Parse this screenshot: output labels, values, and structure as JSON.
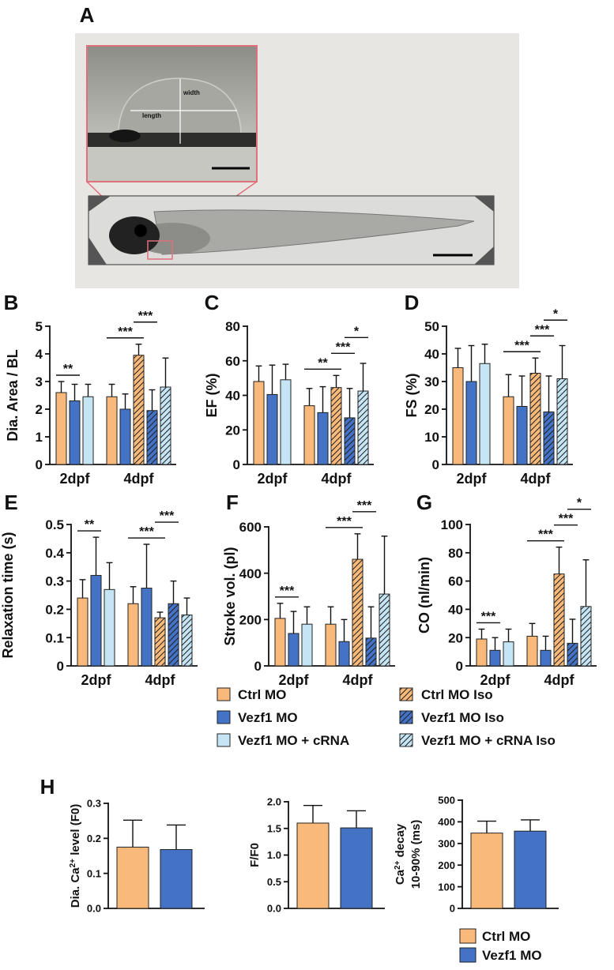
{
  "figure": {
    "panel_a": {
      "label": "A",
      "inset_labels": [
        "width",
        "length"
      ]
    }
  },
  "chart_data": [
    {
      "type": "bar",
      "panel": "B",
      "y_label": "Dia. Area / BL",
      "categories": [
        "2dpf",
        "4dpf"
      ],
      "ylim": [
        0,
        5
      ],
      "yticks": [
        0,
        1,
        2,
        3,
        4,
        5
      ],
      "series": [
        {
          "name": "Ctrl MO",
          "color": "#f9b97a",
          "hatch": false,
          "values": [
            2.6,
            2.45
          ],
          "errors": [
            0.4,
            0.45
          ]
        },
        {
          "name": "Vezf1 MO",
          "color": "#4472c4",
          "hatch": false,
          "values": [
            2.3,
            2.0
          ],
          "errors": [
            0.6,
            0.55
          ]
        },
        {
          "name": "Vezf1 MO + cRNA",
          "color": "#c5e5f5",
          "hatch": false,
          "values": [
            2.45,
            null
          ],
          "errors": [
            0.45,
            null
          ]
        },
        {
          "name": "Ctrl MO Iso",
          "color": "#f9b97a",
          "hatch": true,
          "values": [
            null,
            3.95
          ],
          "errors": [
            null,
            0.4
          ]
        },
        {
          "name": "Vezf1 MO Iso",
          "color": "#4472c4",
          "hatch": true,
          "values": [
            null,
            1.95
          ],
          "errors": [
            null,
            0.75
          ]
        },
        {
          "name": "Vezf1 MO + cRNA Iso",
          "color": "#c5e5f5",
          "hatch": true,
          "values": [
            null,
            2.8
          ],
          "errors": [
            null,
            1.05
          ]
        }
      ],
      "annotations": [
        {
          "text": "**",
          "category": 0,
          "from": 0,
          "to": 1
        },
        {
          "text": "***",
          "category": 1,
          "from": 0,
          "to": 3
        },
        {
          "text": "***",
          "category": 1,
          "from": 3,
          "to": 4
        }
      ]
    },
    {
      "type": "bar",
      "panel": "C",
      "y_label": "EF (%)",
      "categories": [
        "2dpf",
        "4dpf"
      ],
      "ylim": [
        0,
        80
      ],
      "yticks": [
        0,
        20,
        40,
        60,
        80
      ],
      "series": [
        {
          "values": [
            48,
            34
          ],
          "errors": [
            9,
            10
          ]
        },
        {
          "values": [
            40.5,
            30
          ],
          "errors": [
            17,
            15
          ]
        },
        {
          "values": [
            49,
            null
          ],
          "errors": [
            9,
            null
          ]
        },
        {
          "values": [
            null,
            44.5
          ],
          "errors": [
            null,
            7
          ]
        },
        {
          "values": [
            null,
            27
          ],
          "errors": [
            null,
            17
          ]
        },
        {
          "values": [
            null,
            42.5
          ],
          "errors": [
            null,
            16
          ]
        }
      ],
      "annotations": [
        {
          "text": "**",
          "category": 1,
          "from": 0,
          "to": 3
        },
        {
          "text": "***",
          "category": 1,
          "from": 3,
          "to": 4
        },
        {
          "text": "*",
          "category": 1,
          "from": 4,
          "to": 5
        }
      ]
    },
    {
      "type": "bar",
      "panel": "D",
      "y_label": "FS (%)",
      "categories": [
        "2dpf",
        "4dpf"
      ],
      "ylim": [
        0,
        50
      ],
      "yticks": [
        0,
        10,
        20,
        30,
        40,
        50
      ],
      "series": [
        {
          "values": [
            35,
            24.5
          ],
          "errors": [
            7,
            8
          ]
        },
        {
          "values": [
            30,
            21
          ],
          "errors": [
            13,
            11
          ]
        },
        {
          "values": [
            36.5,
            null
          ],
          "errors": [
            7,
            null
          ]
        },
        {
          "values": [
            null,
            33
          ],
          "errors": [
            null,
            5.5
          ]
        },
        {
          "values": [
            null,
            19
          ],
          "errors": [
            null,
            13
          ]
        },
        {
          "values": [
            null,
            31
          ],
          "errors": [
            null,
            12
          ]
        }
      ],
      "annotations": [
        {
          "text": "***",
          "category": 1,
          "from": 0,
          "to": 3
        },
        {
          "text": "***",
          "category": 1,
          "from": 3,
          "to": 4
        },
        {
          "text": "*",
          "category": 1,
          "from": 4,
          "to": 5
        }
      ]
    },
    {
      "type": "bar",
      "panel": "E",
      "y_label": "Relaxation time (s)",
      "categories": [
        "2dpf",
        "4dpf"
      ],
      "ylim": [
        0,
        0.5
      ],
      "yticks": [
        0,
        0.1,
        0.2,
        0.3,
        0.4,
        0.5
      ],
      "series": [
        {
          "values": [
            0.24,
            0.22
          ],
          "errors": [
            0.065,
            0.06
          ]
        },
        {
          "values": [
            0.32,
            0.275
          ],
          "errors": [
            0.135,
            0.155
          ]
        },
        {
          "values": [
            0.27,
            null
          ],
          "errors": [
            0.095,
            null
          ]
        },
        {
          "values": [
            null,
            0.17
          ],
          "errors": [
            null,
            0.02
          ]
        },
        {
          "values": [
            null,
            0.22
          ],
          "errors": [
            null,
            0.08
          ]
        },
        {
          "values": [
            null,
            0.18
          ],
          "errors": [
            null,
            0.06
          ]
        }
      ],
      "annotations": [
        {
          "text": "**",
          "category": 0,
          "from": 0,
          "to": 1
        },
        {
          "text": "***",
          "category": 1,
          "from": 0,
          "to": 3
        },
        {
          "text": "***",
          "category": 1,
          "from": 3,
          "to": 4
        }
      ]
    },
    {
      "type": "bar",
      "panel": "F",
      "y_label": "Stroke vol. (pl)",
      "categories": [
        "2dpf",
        "4dpf"
      ],
      "ylim": [
        0,
        600
      ],
      "yticks": [
        0,
        200,
        400,
        600
      ],
      "series": [
        {
          "values": [
            205,
            180
          ],
          "errors": [
            65,
            75
          ]
        },
        {
          "values": [
            140,
            105
          ],
          "errors": [
            95,
            95
          ]
        },
        {
          "values": [
            180,
            null
          ],
          "errors": [
            75,
            null
          ]
        },
        {
          "values": [
            null,
            460
          ],
          "errors": [
            null,
            110
          ]
        },
        {
          "values": [
            null,
            120
          ],
          "errors": [
            null,
            135
          ]
        },
        {
          "values": [
            null,
            310
          ],
          "errors": [
            null,
            250
          ]
        }
      ],
      "annotations": [
        {
          "text": "***",
          "category": 0,
          "from": 0,
          "to": 1
        },
        {
          "text": "***",
          "category": 1,
          "from": 0,
          "to": 3
        },
        {
          "text": "***",
          "category": 1,
          "from": 3,
          "to": 4
        }
      ]
    },
    {
      "type": "bar",
      "panel": "G",
      "y_label": "CO (nl/min)",
      "categories": [
        "2dpf",
        "4dpf"
      ],
      "ylim": [
        0,
        100
      ],
      "yticks": [
        0,
        20,
        40,
        60,
        80,
        100
      ],
      "series": [
        {
          "values": [
            19,
            21
          ],
          "errors": [
            7,
            9
          ]
        },
        {
          "values": [
            11,
            11
          ],
          "errors": [
            9,
            10
          ]
        },
        {
          "values": [
            17,
            null
          ],
          "errors": [
            9,
            null
          ]
        },
        {
          "values": [
            null,
            65
          ],
          "errors": [
            null,
            19
          ]
        },
        {
          "values": [
            null,
            16
          ],
          "errors": [
            null,
            17
          ]
        },
        {
          "values": [
            null,
            42
          ],
          "errors": [
            null,
            33
          ]
        }
      ],
      "annotations": [
        {
          "text": "***",
          "category": 0,
          "from": 0,
          "to": 1
        },
        {
          "text": "***",
          "category": 1,
          "from": 0,
          "to": 3
        },
        {
          "text": "***",
          "category": 1,
          "from": 3,
          "to": 4
        },
        {
          "text": "*",
          "category": 1,
          "from": 4,
          "to": 5
        }
      ]
    },
    {
      "type": "bar",
      "panel": "H",
      "y_label": [
        [
          "Dia. Ca",
          "2+",
          " level (F0)"
        ]
      ],
      "ylim": [
        0,
        0.3
      ],
      "yticks": [
        {
          "value": 0,
          "label": "0.0"
        },
        0.1,
        0.2,
        0.3
      ],
      "series": [
        {
          "name": "Ctrl MO",
          "color": "#f9b97a",
          "values": [
            0.175
          ],
          "errors": [
            0.077
          ]
        },
        {
          "name": "Vezf1 MO",
          "color": "#4472c4",
          "values": [
            0.168
          ],
          "errors": [
            0.07
          ]
        }
      ]
    },
    {
      "type": "bar",
      "y_label": "F/F0",
      "ylim": [
        0,
        2.0
      ],
      "yticks": [
        {
          "value": 0,
          "label": "0.0"
        },
        0.5,
        {
          "value": 1,
          "label": "1.0"
        },
        1.5,
        {
          "value": 2,
          "label": "2.0"
        }
      ],
      "series": [
        {
          "values": [
            1.6
          ],
          "errors": [
            0.33
          ]
        },
        {
          "values": [
            1.51
          ],
          "errors": [
            0.32
          ]
        }
      ]
    },
    {
      "type": "bar",
      "y_label": [
        [
          "Ca",
          "2+",
          " decay"
        ],
        [
          "10-90% (ms)"
        ]
      ],
      "ylim": [
        0,
        500
      ],
      "yticks": [
        0,
        100,
        200,
        300,
        400,
        500
      ],
      "series": [
        {
          "values": [
            348
          ],
          "errors": [
            55
          ]
        },
        {
          "values": [
            357
          ],
          "errors": [
            52
          ]
        }
      ]
    }
  ]
}
